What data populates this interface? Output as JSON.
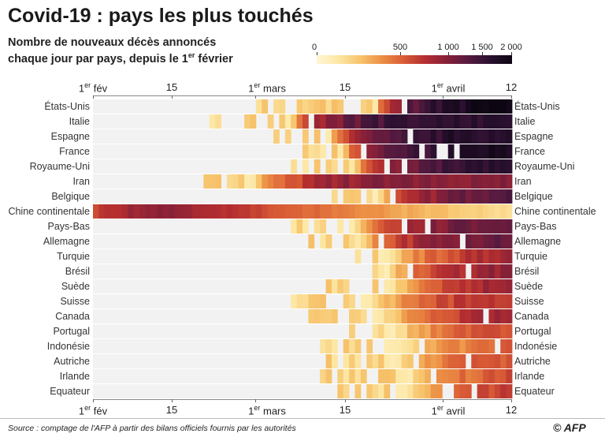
{
  "header": {
    "title": "Covid-19 : pays les plus touchés",
    "subtitle_line1": "Nombre de nouveaux décès annoncés",
    "subtitle_line2_a": "chaque jour par pays, depuis le 1",
    "subtitle_line2_sup": "er",
    "subtitle_line2_b": " février"
  },
  "legend": {
    "ticks": [
      "0",
      "500",
      "1 000",
      "1 500",
      "2 000"
    ],
    "colors": [
      "#fff6d5",
      "#fce7a4",
      "#f7c46c",
      "#ec9045",
      "#d95c36",
      "#b42e30",
      "#852039",
      "#551a40",
      "#2a1030",
      "#0d0612"
    ]
  },
  "axis": {
    "fev_main": "1",
    "fev_sup": "er",
    "fev_rest": " fév",
    "fifteen_a": "15",
    "mars_main": "1",
    "mars_sup": "er",
    "mars_rest": " mars",
    "fifteen_b": "15",
    "avril_main": "1",
    "avril_sup": "er",
    "avril_rest": " avril",
    "twelve": "12"
  },
  "countries": [
    "États-Unis",
    "Italie",
    "Espagne",
    "France",
    "Royaume-Uni",
    "Iran",
    "Belgique",
    "Chine continentale",
    "Pays-Bas",
    "Allemagne",
    "Turquie",
    "Brésil",
    "Suède",
    "Suisse",
    "Canada",
    "Portugal",
    "Indonésie",
    "Autriche",
    "Irlande",
    "Equateur"
  ],
  "footer": {
    "source": "Source : comptage de l'AFP à partir des bilans officiels fournis par les autorités",
    "logo": "AFP"
  },
  "chart_data": {
    "type": "heatmap",
    "title": "Covid-19 : pays les plus touchés",
    "x": {
      "start": "2020-02-01",
      "end": "2020-04-12",
      "tick_labels": [
        "1er fév",
        "15",
        "1er mars",
        "15",
        "1er avril",
        "12"
      ]
    },
    "y": [
      "États-Unis",
      "Italie",
      "Espagne",
      "France",
      "Royaume-Uni",
      "Iran",
      "Belgique",
      "Chine continentale",
      "Pays-Bas",
      "Allemagne",
      "Turquie",
      "Brésil",
      "Suède",
      "Suisse",
      "Canada",
      "Portugal",
      "Indonésie",
      "Autriche",
      "Irlande",
      "Equateur"
    ],
    "color_scale": {
      "type": "log",
      "min": 1,
      "max": 2000,
      "tick_values": [
        0,
        500,
        1000,
        1500,
        2000
      ]
    },
    "series": [
      {
        "name": "États-Unis",
        "onset": "2020-02-29",
        "peak": 2000,
        "ramp_start": "2020-03-20",
        "ramp_end": "2020-04-08"
      },
      {
        "name": "Italie",
        "onset": "2020-02-21",
        "peak": 900,
        "ramp_start": "2020-03-05",
        "ramp_end": "2020-03-27"
      },
      {
        "name": "Espagne",
        "onset": "2020-03-03",
        "peak": 950,
        "ramp_start": "2020-03-12",
        "ramp_end": "2020-04-02"
      },
      {
        "name": "France",
        "onset": "2020-03-08",
        "peak": 1400,
        "ramp_start": "2020-03-14",
        "ramp_end": "2020-04-07"
      },
      {
        "name": "Royaume-Uni",
        "onset": "2020-03-05",
        "peak": 1000,
        "ramp_start": "2020-03-16",
        "ramp_end": "2020-04-09"
      },
      {
        "name": "Iran",
        "onset": "2020-02-19",
        "peak": 160,
        "ramp_start": "2020-02-27",
        "ramp_end": "2020-03-17"
      },
      {
        "name": "Belgique",
        "onset": "2020-03-11",
        "peak": 400,
        "ramp_start": "2020-03-20",
        "ramp_end": "2020-04-08"
      },
      {
        "name": "Chine continentale",
        "onset": "2020-02-01",
        "peak": 150,
        "ramp_start": "2020-02-01",
        "ramp_end": "2020-02-12"
      },
      {
        "name": "Pays-Bas",
        "onset": "2020-03-06",
        "peak": 240,
        "ramp_start": "2020-03-16",
        "ramp_end": "2020-04-04"
      },
      {
        "name": "Allemagne",
        "onset": "2020-03-09",
        "peak": 300,
        "ramp_start": "2020-03-17",
        "ramp_end": "2020-04-08"
      },
      {
        "name": "Turquie",
        "onset": "2020-03-17",
        "peak": 100,
        "ramp_start": "2020-03-21",
        "ramp_end": "2020-04-10"
      },
      {
        "name": "Brésil",
        "onset": "2020-03-17",
        "peak": 140,
        "ramp_start": "2020-03-21",
        "ramp_end": "2020-04-10"
      },
      {
        "name": "Suède",
        "onset": "2020-03-11",
        "peak": 110,
        "ramp_start": "2020-03-22",
        "ramp_end": "2020-04-09"
      },
      {
        "name": "Suisse",
        "onset": "2020-03-05",
        "peak": 60,
        "ramp_start": "2020-03-18",
        "ramp_end": "2020-04-05"
      },
      {
        "name": "Canada",
        "onset": "2020-03-09",
        "peak": 100,
        "ramp_start": "2020-03-20",
        "ramp_end": "2020-04-10"
      },
      {
        "name": "Portugal",
        "onset": "2020-03-16",
        "peak": 35,
        "ramp_start": "2020-03-22",
        "ramp_end": "2020-04-05"
      },
      {
        "name": "Indonésie",
        "onset": "2020-03-11",
        "peak": 30,
        "ramp_start": "2020-03-22",
        "ramp_end": "2020-04-10"
      },
      {
        "name": "Autriche",
        "onset": "2020-03-12",
        "peak": 30,
        "ramp_start": "2020-03-22",
        "ramp_end": "2020-04-05"
      },
      {
        "name": "Irlande",
        "onset": "2020-03-11",
        "peak": 40,
        "ramp_start": "2020-03-24",
        "ramp_end": "2020-04-10"
      },
      {
        "name": "Equateur",
        "onset": "2020-03-13",
        "peak": 50,
        "ramp_start": "2020-03-24",
        "ramp_end": "2020-04-10"
      }
    ]
  }
}
